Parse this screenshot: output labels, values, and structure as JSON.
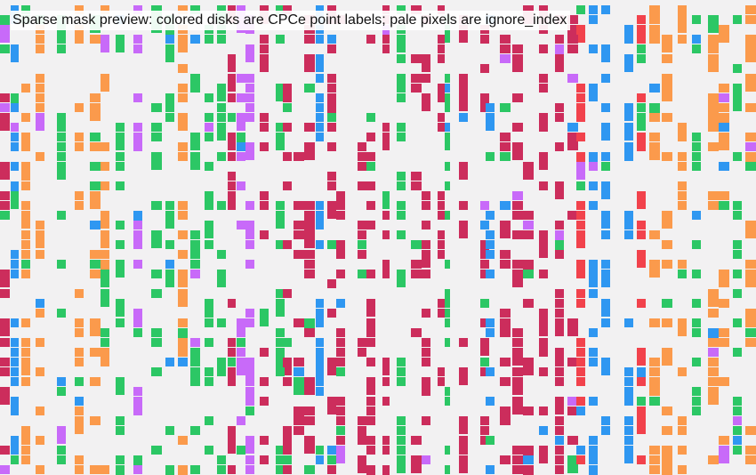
{
  "caption": "Sparse mask preview: colored disks are CPCe point labels; pale pixels are ignore_index",
  "background_color": "#f2f1f2",
  "label_colors": {
    "orange": "#fb9a4c",
    "green": "#2cc765",
    "crimson": "#cc2d5c",
    "violet": "#c86af9",
    "blue": "#2f97f1",
    "red": "#f2424c"
  }
}
